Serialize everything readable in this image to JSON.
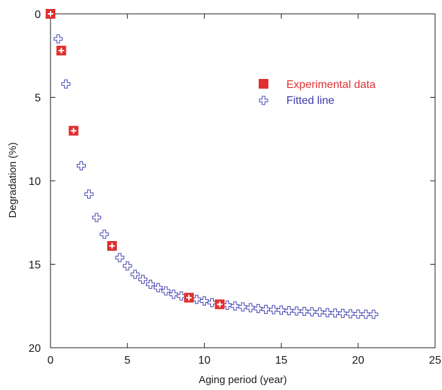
{
  "chart_data": {
    "type": "scatter",
    "xlabel": "Aging period (year)",
    "ylabel": "Degradation (%)",
    "xlim": [
      0,
      25
    ],
    "ylim": [
      0,
      20
    ],
    "y_inverted": true,
    "x_ticks": [
      0,
      5,
      10,
      15,
      20,
      25
    ],
    "y_ticks": [
      0,
      5,
      10,
      15,
      20
    ],
    "grid": false,
    "legend_position": "top-right",
    "series": [
      {
        "name": "Experimental data",
        "marker": "filled-square",
        "color": "#e03030",
        "x": [
          0,
          0.7,
          1.5,
          4,
          9,
          11
        ],
        "y": [
          0,
          2.2,
          7.0,
          13.9,
          17.0,
          17.4
        ]
      },
      {
        "name": "Fitted line",
        "marker": "open-plus",
        "color": "#4040b0",
        "x": [
          0,
          0.5,
          1,
          1.5,
          2,
          2.5,
          3,
          3.5,
          4,
          4.5,
          5,
          5.5,
          6,
          6.5,
          7,
          7.5,
          8,
          8.5,
          9,
          9.5,
          10,
          10.5,
          11,
          11.5,
          12,
          12.5,
          13,
          13.5,
          14,
          14.5,
          15,
          15.5,
          16,
          16.5,
          17,
          17.5,
          18,
          18.5,
          19,
          19.5,
          20,
          20.5,
          21
        ],
        "y": [
          0,
          1.5,
          4.2,
          7.0,
          9.1,
          10.8,
          12.2,
          13.2,
          13.9,
          14.6,
          15.1,
          15.6,
          15.9,
          16.2,
          16.4,
          16.6,
          16.8,
          16.9,
          17.0,
          17.1,
          17.2,
          17.3,
          17.4,
          17.45,
          17.5,
          17.55,
          17.6,
          17.65,
          17.7,
          17.72,
          17.75,
          17.78,
          17.8,
          17.82,
          17.85,
          17.87,
          17.9,
          17.92,
          17.94,
          17.96,
          17.98,
          18.0,
          18.0
        ]
      }
    ]
  }
}
